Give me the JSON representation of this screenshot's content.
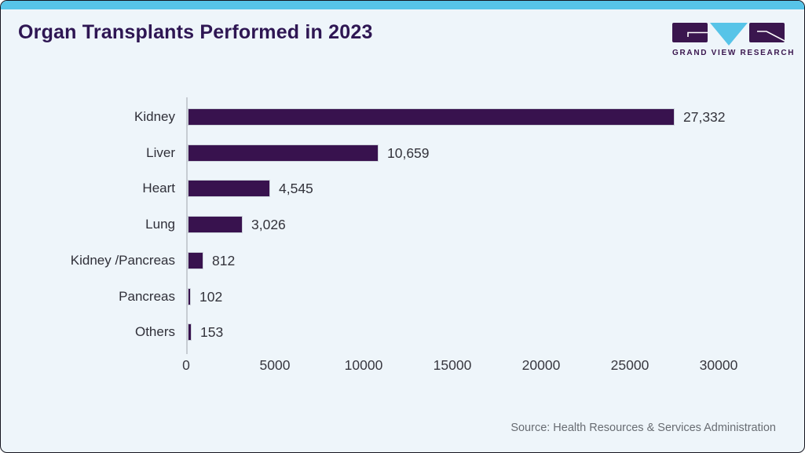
{
  "header": {
    "title": "Organ Transplants Performed in 2023",
    "logo_text": "GRAND VIEW RESEARCH"
  },
  "chart_data": {
    "type": "bar",
    "orientation": "horizontal",
    "title": "Organ Transplants Performed in 2023",
    "categories": [
      "Kidney",
      "Liver",
      "Heart",
      "Lung",
      "Kidney /Pancreas",
      "Pancreas",
      "Others"
    ],
    "values": [
      27332,
      10659,
      4545,
      3026,
      812,
      102,
      153
    ],
    "value_labels": [
      "27,332",
      "10,659",
      "4,545",
      "3,026",
      "812",
      "102",
      "153"
    ],
    "x_ticks": [
      "0",
      "5000",
      "10000",
      "15000",
      "20000",
      "25000",
      "30000"
    ],
    "x_tick_values": [
      0,
      5000,
      10000,
      15000,
      20000,
      25000,
      30000
    ],
    "xlim": [
      0,
      32000
    ],
    "xlabel": "",
    "ylabel": "",
    "grid": false,
    "legend": false,
    "bar_color": "#38124e"
  },
  "footer": {
    "source": "Source: Health Resources & Services Administration"
  },
  "colors": {
    "accent_cyan": "#57c4e8",
    "bar_purple": "#38124e",
    "title_purple": "#2e1653",
    "card_background": "#eef5fa"
  }
}
